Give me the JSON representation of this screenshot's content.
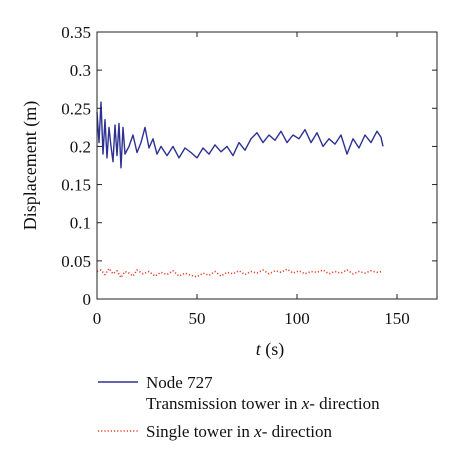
{
  "chart_data": {
    "type": "line",
    "title": "",
    "xlabel": {
      "var": "t",
      "rest": " (s)"
    },
    "ylabel": "Displacement (m)",
    "xlim": [
      0,
      170
    ],
    "ylim": [
      0,
      0.35
    ],
    "xticks": [
      0,
      50,
      100,
      150
    ],
    "yticks": [
      0,
      0.05,
      0.1,
      0.15,
      0.2,
      0.25,
      0.3,
      0.35
    ],
    "xtick_labels": [
      "0",
      "50",
      "100",
      "150"
    ],
    "ytick_labels": [
      "0",
      "0.05",
      "0.1",
      "0.15",
      "0.2",
      "0.25",
      "0.3",
      "0.35"
    ],
    "grid": false,
    "legend_position": "below",
    "series": [
      {
        "name_lines": [
          {
            "parts": [
              {
                "text": "Node 727",
                "italic": false
              }
            ]
          },
          {
            "parts": [
              {
                "text": "Transmission tower in ",
                "italic": false
              },
              {
                "text": "x",
                "italic": true
              },
              {
                "text": "- direction",
                "italic": false
              }
            ]
          }
        ],
        "color": "#2e3192",
        "style": "solid",
        "x": [
          0,
          1,
          2,
          3,
          4,
          5,
          6,
          7,
          8,
          9,
          10,
          11,
          12,
          13,
          14,
          16,
          18,
          20,
          22,
          24,
          26,
          28,
          30,
          32,
          35,
          38,
          41,
          44,
          47,
          50,
          53,
          56,
          59,
          62,
          65,
          68,
          71,
          74,
          77,
          80,
          83,
          86,
          89,
          92,
          95,
          98,
          101,
          104,
          107,
          110,
          113,
          116,
          119,
          122,
          125,
          128,
          131,
          134,
          137,
          140,
          142,
          143
        ],
        "values": [
          0.245,
          0.205,
          0.258,
          0.19,
          0.235,
          0.185,
          0.225,
          0.2,
          0.18,
          0.228,
          0.188,
          0.23,
          0.172,
          0.225,
          0.19,
          0.2,
          0.215,
          0.192,
          0.205,
          0.225,
          0.198,
          0.21,
          0.19,
          0.2,
          0.188,
          0.2,
          0.185,
          0.198,
          0.192,
          0.185,
          0.198,
          0.19,
          0.202,
          0.193,
          0.2,
          0.188,
          0.205,
          0.195,
          0.21,
          0.218,
          0.205,
          0.215,
          0.208,
          0.22,
          0.205,
          0.215,
          0.21,
          0.222,
          0.205,
          0.218,
          0.2,
          0.21,
          0.203,
          0.215,
          0.19,
          0.21,
          0.198,
          0.215,
          0.205,
          0.22,
          0.212,
          0.2
        ]
      },
      {
        "name_lines": [
          {
            "parts": [
              {
                "text": "Single tower in ",
                "italic": false
              },
              {
                "text": "x",
                "italic": true
              },
              {
                "text": "- direction",
                "italic": false
              }
            ]
          }
        ],
        "color": "#e8442a",
        "style": "dotted",
        "x": [
          0,
          2,
          4,
          6,
          8,
          10,
          12,
          14,
          16,
          18,
          20,
          23,
          26,
          29,
          32,
          35,
          38,
          41,
          44,
          47,
          50,
          53,
          56,
          59,
          62,
          65,
          68,
          71,
          74,
          77,
          80,
          83,
          86,
          89,
          92,
          95,
          98,
          101,
          104,
          107,
          110,
          113,
          116,
          119,
          122,
          125,
          128,
          131,
          134,
          137,
          140,
          143
        ],
        "values": [
          0.036,
          0.038,
          0.032,
          0.04,
          0.033,
          0.037,
          0.028,
          0.036,
          0.034,
          0.03,
          0.038,
          0.033,
          0.036,
          0.03,
          0.035,
          0.032,
          0.037,
          0.03,
          0.034,
          0.031,
          0.029,
          0.034,
          0.031,
          0.036,
          0.03,
          0.035,
          0.033,
          0.037,
          0.032,
          0.036,
          0.034,
          0.038,
          0.033,
          0.037,
          0.035,
          0.039,
          0.034,
          0.037,
          0.033,
          0.036,
          0.035,
          0.038,
          0.033,
          0.036,
          0.034,
          0.038,
          0.033,
          0.036,
          0.034,
          0.037,
          0.035,
          0.036
        ]
      }
    ]
  }
}
